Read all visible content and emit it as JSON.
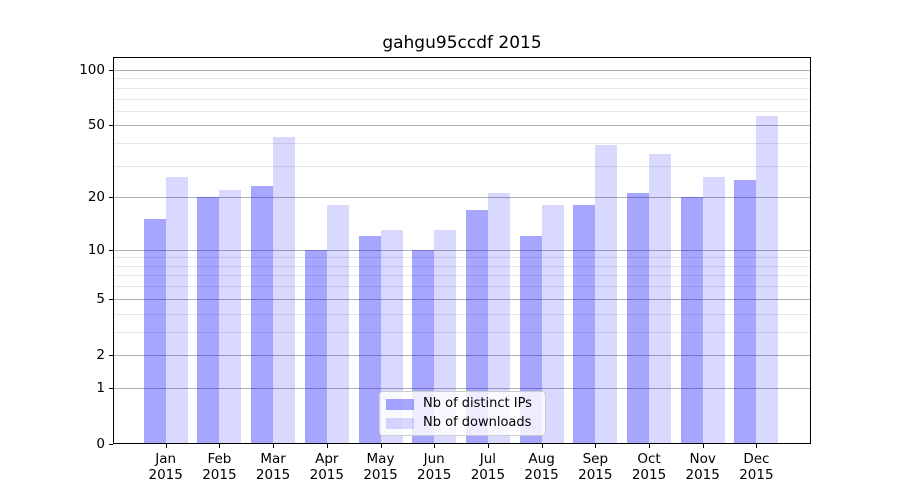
{
  "title": "gahgu95ccdf 2015",
  "colors": {
    "background": "#ffffff",
    "spine": "#000000",
    "major_grid": "#b0b0b0",
    "minor_grid": "#e7e7e7",
    "text": "#000000",
    "legend_border": "#cccccc",
    "legend_background": "rgba(255,255,255,0.8)",
    "series_dark": "rgba(0,0,255,0.35)",
    "series_light": "rgba(0,0,255,0.15)"
  },
  "chart_data": {
    "type": "bar",
    "title": "gahgu95ccdf 2015",
    "categories": [
      "Jan",
      "Feb",
      "Mar",
      "Apr",
      "May",
      "Jun",
      "Jul",
      "Aug",
      "Sep",
      "Oct",
      "Nov",
      "Dec"
    ],
    "year": "2015",
    "series": [
      {
        "name": "Nb of distinct IPs",
        "color": "rgba(0,0,255,0.35)",
        "values": [
          15,
          20,
          23,
          10,
          12,
          10,
          17,
          12,
          18,
          21,
          20,
          25
        ]
      },
      {
        "name": "Nb of downloads",
        "color": "rgba(0,0,255,0.15)",
        "values": [
          26,
          22,
          43,
          18,
          13,
          13,
          21,
          18,
          39,
          35,
          26,
          56
        ]
      }
    ],
    "xlabel": "",
    "ylabel": "",
    "y_scale": "log1p",
    "ylim": [
      0,
      117.5
    ],
    "y_major_ticks": [
      100,
      50,
      20,
      10,
      5,
      2,
      1,
      0
    ],
    "y_minor_ticks": [
      90,
      80,
      70,
      60,
      40,
      30,
      9,
      8,
      7,
      6,
      4,
      3
    ],
    "grid": true,
    "legend_position": "lower center"
  }
}
